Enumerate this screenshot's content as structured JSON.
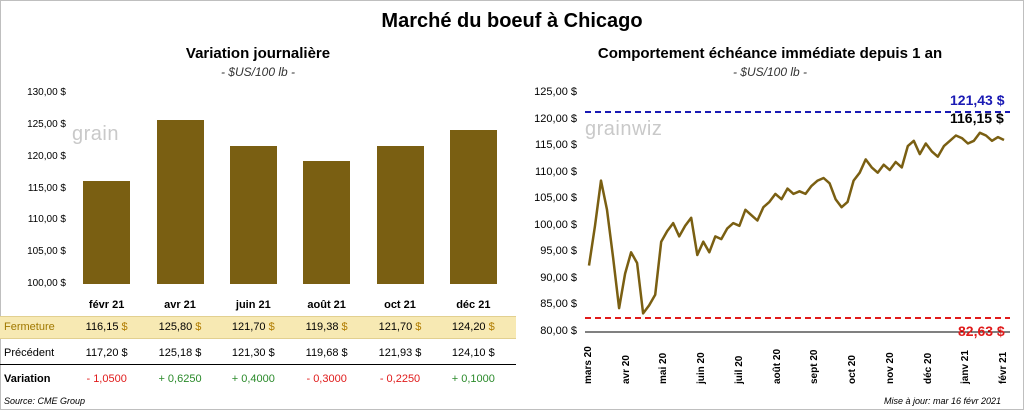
{
  "title": "Marché du boeuf à Chicago",
  "left": {
    "title": "Variation  journalière",
    "subtitle": "- $US/100 lb -",
    "watermark": "grain",
    "yticks": [
      "130,00 $",
      "125,00 $",
      "120,00 $",
      "115,00 $",
      "110,00 $",
      "105,00 $",
      "100,00 $"
    ],
    "table": {
      "fermeture_label": "Fermeture",
      "precedent_label": "Précédent",
      "variation_label": "Variation",
      "fermeture": [
        "116,15",
        "125,80",
        "121,70",
        "119,38",
        "121,70",
        "124,20"
      ],
      "precedent": [
        "117,20",
        "125,18",
        "121,30",
        "119,68",
        "121,93",
        "124,10"
      ],
      "variation": [
        "- 1,0500",
        "+ 0,6250",
        "+ 0,4000",
        "- 0,3000",
        "- 0,2250",
        "+ 0,1000"
      ],
      "currency": "$"
    }
  },
  "right": {
    "title": "Comportement  échéance immédiate depuis 1 an",
    "subtitle": "- $US/100 lb -",
    "watermark": "grainwiz",
    "yticks": [
      "125,00 $",
      "120,00 $",
      "115,00 $",
      "110,00 $",
      "105,00 $",
      "100,00 $",
      "95,00 $",
      "90,00 $",
      "85,00 $",
      "80,00 $"
    ],
    "xticks": [
      "mars 20",
      "avr 20",
      "mai 20",
      "juin 20",
      "juil 20",
      "août 20",
      "sept 20",
      "oct 20",
      "nov 20",
      "déc 20",
      "janv 21",
      "févr 21"
    ],
    "high_label": "121,43 $",
    "last_label": "116,15 $",
    "low_label": "82,63 $"
  },
  "footer": {
    "source": "Source: CME Group",
    "updated": "Mise à jour: mar 16 févr 2021"
  },
  "colors": {
    "bar": "#7a5f12",
    "line": "#7a5f12",
    "high": "#1a1ab4",
    "low": "#e01b1b",
    "positive": "#2a8a2a",
    "negative": "#e01b1b"
  },
  "chart_data": [
    {
      "type": "bar",
      "title": "Variation  journalière",
      "ylabel": "- $US/100 lb -",
      "categories": [
        "févr 21",
        "avr 21",
        "juin 21",
        "août 21",
        "oct 21",
        "déc 21"
      ],
      "values": [
        116.15,
        125.8,
        121.7,
        119.38,
        121.7,
        124.2
      ],
      "ylim": [
        100,
        130
      ],
      "grid": false,
      "legend": "none"
    },
    {
      "type": "line",
      "title": "Comportement  échéance immédiate depuis 1 an",
      "ylabel": "- $US/100 lb -",
      "ylim": [
        80,
        125
      ],
      "grid": false,
      "x": [
        "mars 20",
        "mars 20",
        "mars 20",
        "mars 20",
        "mars 20",
        "mars 20",
        "avr 20",
        "avr 20",
        "avr 20",
        "avr 20",
        "avr 20",
        "avr 20",
        "mai 20",
        "mai 20",
        "mai 20",
        "mai 20",
        "mai 20",
        "mai 20",
        "juin 20",
        "juin 20",
        "juin 20",
        "juin 20",
        "juin 20",
        "juin 20",
        "juil 20",
        "juil 20",
        "juil 20",
        "juil 20",
        "juil 20",
        "juil 20",
        "août 20",
        "août 20",
        "août 20",
        "août 20",
        "août 20",
        "août 20",
        "sept 20",
        "sept 20",
        "sept 20",
        "sept 20",
        "sept 20",
        "sept 20",
        "oct 20",
        "oct 20",
        "oct 20",
        "oct 20",
        "oct 20",
        "oct 20",
        "nov 20",
        "nov 20",
        "nov 20",
        "nov 20",
        "nov 20",
        "nov 20",
        "déc 20",
        "déc 20",
        "déc 20",
        "déc 20",
        "déc 20",
        "déc 20",
        "janv 21",
        "janv 21",
        "janv 21",
        "janv 21",
        "janv 21",
        "janv 21",
        "févr 21",
        "févr 21",
        "févr 21",
        "févr 21"
      ],
      "series": [
        {
          "values": [
            92.5,
            100.0,
            108.5,
            103.0,
            94.0,
            84.5,
            91.0,
            95.0,
            93.0,
            83.5,
            85.0,
            87.0,
            97.0,
            99.0,
            100.5,
            98.0,
            100.0,
            101.5,
            94.5,
            97.0,
            95.0,
            98.0,
            97.5,
            99.5,
            100.5,
            100.0,
            103.0,
            102.0,
            101.0,
            103.5,
            104.5,
            106.0,
            105.0,
            107.0,
            106.0,
            106.5,
            106.0,
            107.5,
            108.5,
            109.0,
            108.0,
            105.0,
            103.5,
            104.5,
            108.5,
            110.0,
            112.5,
            111.0,
            110.0,
            111.5,
            110.5,
            112.0,
            111.0,
            115.0,
            116.0,
            113.5,
            115.5,
            114.0,
            113.0,
            115.0,
            116.0,
            117.0,
            116.5,
            115.5,
            116.0,
            117.5,
            117.0,
            116.0,
            116.7,
            116.15
          ]
        }
      ],
      "reference_lines": [
        {
          "value": 121.43,
          "label": "121,43 $",
          "color": "#1a1ab4"
        },
        {
          "value": 82.63,
          "label": "82,63 $",
          "color": "#e01b1b"
        }
      ],
      "last_value_label": "116,15 $",
      "legend": "none"
    }
  ]
}
